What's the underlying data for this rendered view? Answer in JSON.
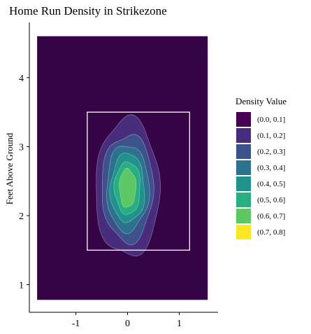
{
  "chart_data": {
    "type": "contour",
    "title": "Home Run Density in Strikezone",
    "xlabel": "",
    "ylabel": "Feet Above Ground",
    "xlim": [
      -1.9,
      1.75
    ],
    "ylim": [
      0.6,
      4.8
    ],
    "x_ticks": [
      -1,
      0,
      1
    ],
    "y_ticks": [
      1,
      2,
      3,
      4
    ],
    "x_tick_labels": [
      "-1",
      "0",
      "1"
    ],
    "y_tick_labels": [
      "1",
      "2",
      "3",
      "4"
    ],
    "plot_extent": {
      "x": [
        -1.75,
        1.55
      ],
      "y": [
        0.78,
        4.6
      ]
    },
    "strike_zone": {
      "x": [
        -0.78,
        1.2
      ],
      "y": [
        1.5,
        3.5
      ]
    },
    "density_center": {
      "x": 0.0,
      "y": 2.4
    },
    "density_levels": [
      {
        "label": "(0.0, 0.1]",
        "color": "#440154",
        "rx": 0.75,
        "ry": 1.25
      },
      {
        "label": "(0.1, 0.2]",
        "color": "#472D7B",
        "rx": 0.62,
        "ry": 1.0
      },
      {
        "label": "(0.2, 0.3]",
        "color": "#3B528B",
        "rx": 0.5,
        "ry": 0.78
      },
      {
        "label": "(0.3, 0.4]",
        "color": "#2C728E",
        "rx": 0.41,
        "ry": 0.63
      },
      {
        "label": "(0.4, 0.5]",
        "color": "#21918C",
        "rx": 0.33,
        "ry": 0.5
      },
      {
        "label": "(0.5, 0.6]",
        "color": "#28AE80",
        "rx": 0.25,
        "ry": 0.38
      },
      {
        "label": "(0.6, 0.7]",
        "color": "#5DC863",
        "rx": 0.16,
        "ry": 0.28
      },
      {
        "label": "(0.7, 0.8]",
        "color": "#FDE725",
        "rx": 0,
        "ry": 0
      }
    ],
    "legend": {
      "title": "Density Value",
      "position": "right"
    },
    "background_color": "#360347",
    "zone_color": "#FFFFFF",
    "grid": false
  }
}
